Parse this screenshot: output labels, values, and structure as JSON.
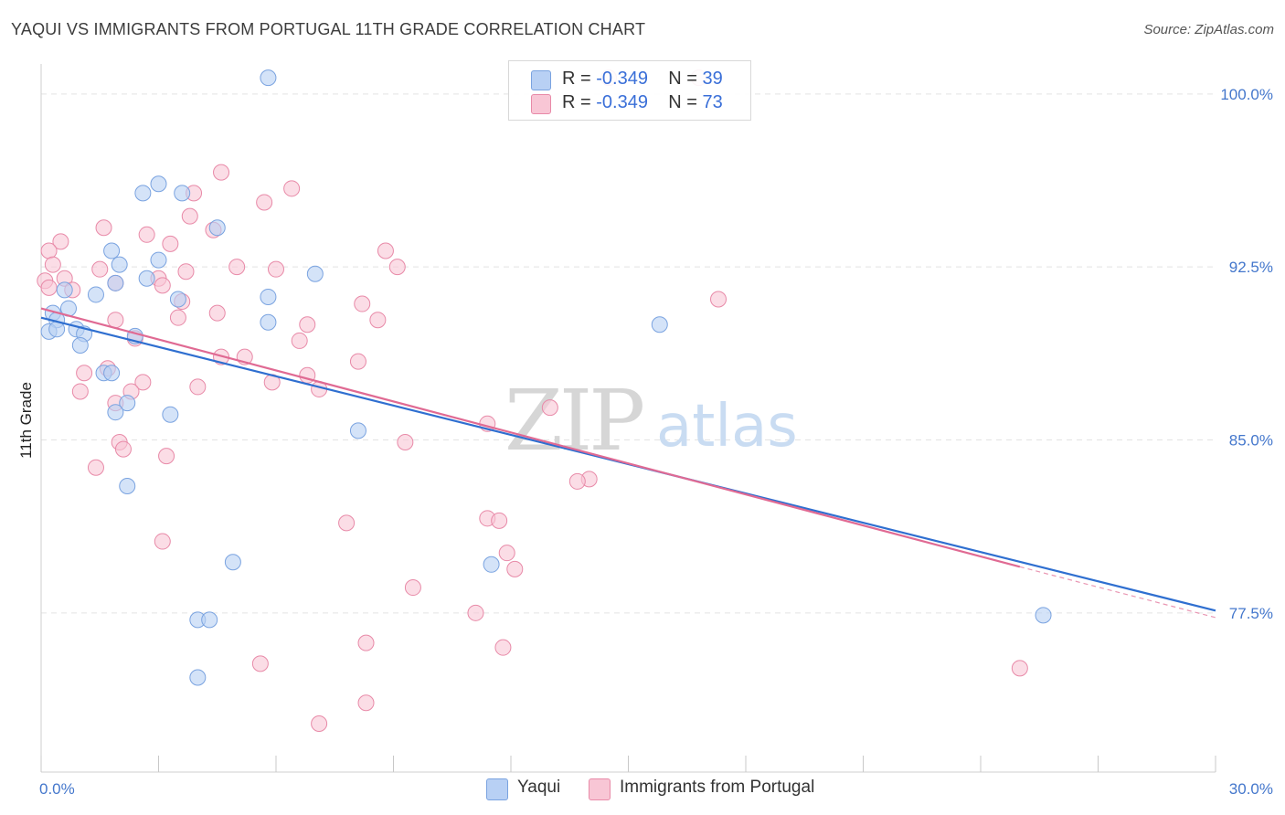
{
  "header": {
    "title": "YAQUI VS IMMIGRANTS FROM PORTUGAL 11TH GRADE CORRELATION CHART",
    "source": "Source: ZipAtlas.com"
  },
  "watermark": {
    "zip": "ZIP",
    "atlas": "atlas"
  },
  "legend_top": [
    {
      "r_label": "R = ",
      "r_value": "-0.349",
      "n_label": "N = ",
      "n_value": "39"
    },
    {
      "r_label": "R = ",
      "r_value": "-0.349",
      "n_label": "N = ",
      "n_value": "73"
    }
  ],
  "legend_bottom": [
    {
      "label": "Yaqui"
    },
    {
      "label": "Immigrants from Portugal"
    }
  ],
  "colors": {
    "yaqui_fill": "#b8d0f4",
    "yaqui_stroke": "#7aa3e0",
    "yaqui_line": "#2f6fd0",
    "portugal_fill": "#f8c6d5",
    "portugal_stroke": "#e88aa8",
    "portugal_line": "#e06a93",
    "grid": "#e3e3e3",
    "tick_text": "#4477cc"
  },
  "chart_data": {
    "type": "scatter",
    "title": "YAQUI VS IMMIGRANTS FROM PORTUGAL 11TH GRADE CORRELATION CHART",
    "xlabel": "",
    "ylabel": "11th Grade",
    "xlim": [
      0.0,
      30.0
    ],
    "ylim": [
      70.6,
      101.3
    ],
    "x_tick_labels": [
      {
        "value": 0.0,
        "label": "0.0%"
      },
      {
        "value": 30.0,
        "label": "30.0%"
      }
    ],
    "y_ticks": [
      {
        "value": 100.0,
        "label": "100.0%"
      },
      {
        "value": 92.5,
        "label": "92.5%"
      },
      {
        "value": 85.0,
        "label": "85.0%"
      },
      {
        "value": 77.5,
        "label": "77.5%"
      }
    ],
    "grid": true,
    "legend_position": "top-center",
    "series": [
      {
        "name": "Yaqui",
        "r": -0.349,
        "n": 39,
        "trend": {
          "x": [
            0.0,
            30.0
          ],
          "y": [
            90.3,
            77.6
          ]
        },
        "points": [
          [
            5.8,
            100.7
          ],
          [
            3.0,
            96.1
          ],
          [
            2.6,
            95.7
          ],
          [
            3.6,
            95.7
          ],
          [
            4.5,
            94.2
          ],
          [
            1.8,
            93.2
          ],
          [
            2.0,
            92.6
          ],
          [
            3.0,
            92.8
          ],
          [
            7.0,
            92.2
          ],
          [
            2.7,
            92.0
          ],
          [
            1.9,
            91.8
          ],
          [
            0.6,
            91.5
          ],
          [
            1.4,
            91.3
          ],
          [
            3.5,
            91.1
          ],
          [
            5.8,
            91.2
          ],
          [
            0.7,
            90.7
          ],
          [
            0.3,
            90.5
          ],
          [
            0.4,
            90.2
          ],
          [
            5.8,
            90.1
          ],
          [
            15.8,
            90.0
          ],
          [
            0.2,
            89.7
          ],
          [
            0.4,
            89.8
          ],
          [
            0.9,
            89.8
          ],
          [
            1.1,
            89.6
          ],
          [
            2.4,
            89.5
          ],
          [
            1.0,
            89.1
          ],
          [
            1.6,
            87.9
          ],
          [
            1.8,
            87.9
          ],
          [
            2.2,
            86.6
          ],
          [
            1.9,
            86.2
          ],
          [
            3.3,
            86.1
          ],
          [
            8.1,
            85.4
          ],
          [
            2.2,
            83.0
          ],
          [
            4.9,
            79.7
          ],
          [
            11.5,
            79.6
          ],
          [
            4.0,
            77.2
          ],
          [
            4.3,
            77.2
          ],
          [
            25.6,
            77.4
          ],
          [
            4.0,
            74.7
          ]
        ]
      },
      {
        "name": "Immigrants from Portugal",
        "r": -0.349,
        "n": 73,
        "trend": {
          "x": [
            0.0,
            25.0
          ],
          "y": [
            90.7,
            79.5
          ]
        },
        "trend_dashed": {
          "x": [
            25.0,
            30.0
          ],
          "y": [
            79.5,
            77.3
          ]
        },
        "points": [
          [
            14.5,
            100.7
          ],
          [
            16.8,
            100.7
          ],
          [
            4.6,
            96.6
          ],
          [
            6.4,
            95.9
          ],
          [
            3.9,
            95.7
          ],
          [
            5.7,
            95.3
          ],
          [
            3.8,
            94.7
          ],
          [
            1.6,
            94.2
          ],
          [
            4.4,
            94.1
          ],
          [
            2.7,
            93.9
          ],
          [
            0.5,
            93.6
          ],
          [
            3.3,
            93.5
          ],
          [
            0.2,
            93.2
          ],
          [
            8.8,
            93.2
          ],
          [
            0.3,
            92.6
          ],
          [
            5.0,
            92.5
          ],
          [
            6.0,
            92.4
          ],
          [
            9.1,
            92.5
          ],
          [
            1.5,
            92.4
          ],
          [
            3.7,
            92.3
          ],
          [
            0.6,
            92.0
          ],
          [
            3.0,
            92.0
          ],
          [
            0.1,
            91.9
          ],
          [
            0.2,
            91.6
          ],
          [
            1.9,
            91.8
          ],
          [
            0.8,
            91.5
          ],
          [
            3.1,
            91.7
          ],
          [
            17.3,
            91.1
          ],
          [
            3.6,
            91.0
          ],
          [
            8.2,
            90.9
          ],
          [
            4.5,
            90.5
          ],
          [
            1.9,
            90.2
          ],
          [
            3.5,
            90.3
          ],
          [
            8.6,
            90.2
          ],
          [
            6.8,
            90.0
          ],
          [
            2.4,
            89.4
          ],
          [
            6.6,
            89.3
          ],
          [
            4.6,
            88.6
          ],
          [
            5.2,
            88.6
          ],
          [
            8.1,
            88.4
          ],
          [
            1.7,
            88.1
          ],
          [
            1.1,
            87.9
          ],
          [
            6.8,
            87.8
          ],
          [
            2.6,
            87.5
          ],
          [
            4.0,
            87.3
          ],
          [
            5.9,
            87.5
          ],
          [
            7.1,
            87.2
          ],
          [
            1.0,
            87.1
          ],
          [
            2.3,
            87.1
          ],
          [
            13.0,
            86.4
          ],
          [
            1.9,
            86.6
          ],
          [
            11.4,
            85.7
          ],
          [
            2.0,
            84.9
          ],
          [
            9.3,
            84.9
          ],
          [
            2.1,
            84.6
          ],
          [
            3.2,
            84.3
          ],
          [
            1.4,
            83.8
          ],
          [
            14.0,
            83.3
          ],
          [
            13.7,
            83.2
          ],
          [
            11.4,
            81.6
          ],
          [
            11.7,
            81.5
          ],
          [
            7.8,
            81.4
          ],
          [
            3.1,
            80.6
          ],
          [
            11.9,
            80.1
          ],
          [
            12.1,
            79.4
          ],
          [
            9.5,
            78.6
          ],
          [
            11.1,
            77.5
          ],
          [
            8.3,
            76.2
          ],
          [
            11.8,
            76.0
          ],
          [
            5.6,
            75.3
          ],
          [
            25.0,
            75.1
          ],
          [
            8.3,
            73.6
          ],
          [
            7.1,
            72.7
          ]
        ]
      }
    ]
  }
}
